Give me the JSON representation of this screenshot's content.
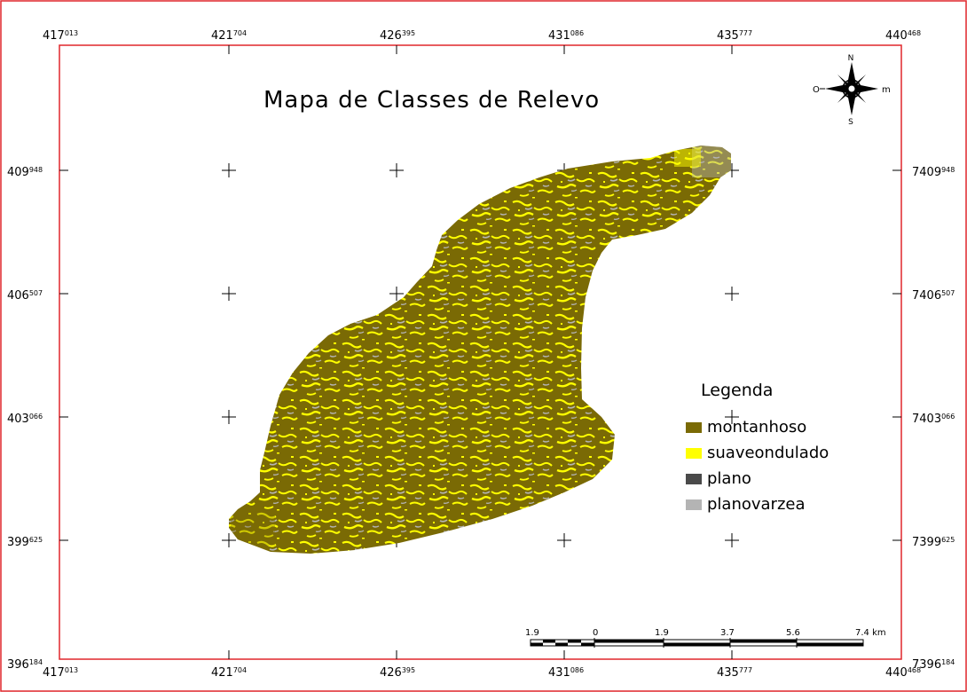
{
  "map": {
    "title": "Mapa de Classes de Relevo",
    "x_ticks": [
      {
        "main": "417",
        "sup": "013"
      },
      {
        "main": "421",
        "sup": "704"
      },
      {
        "main": "426",
        "sup": "395"
      },
      {
        "main": "431",
        "sup": "086"
      },
      {
        "main": "435",
        "sup": "777"
      },
      {
        "main": "440",
        "sup": "468"
      }
    ],
    "y_ticks_left": [
      {
        "main": "409",
        "sup": "948"
      },
      {
        "main": "406",
        "sup": "507"
      },
      {
        "main": "403",
        "sup": "066"
      },
      {
        "main": "399",
        "sup": "625"
      },
      {
        "main": "396",
        "sup": "184"
      }
    ],
    "y_ticks_right": [
      {
        "main": "7409",
        "sup": "948"
      },
      {
        "main": "7406",
        "sup": "507"
      },
      {
        "main": "7403",
        "sup": "066"
      },
      {
        "main": "7399",
        "sup": "625"
      },
      {
        "main": "7396",
        "sup": "184"
      }
    ],
    "north_arrow": {
      "icon": "compass-rose-icon",
      "n": "N",
      "s": "S",
      "e": "m",
      "w": "O"
    },
    "legend": {
      "title": "Legenda",
      "items": [
        {
          "label": "montanhoso",
          "color": "#7a6a05"
        },
        {
          "label": "suaveondulado",
          "color": "#ffff00"
        },
        {
          "label": "plano",
          "color": "#4a4a4a"
        },
        {
          "label": "planovarzea",
          "color": "#b4b4b4"
        }
      ]
    },
    "scale_bar": {
      "labels": [
        "1.9",
        "0",
        "1.9",
        "3.7",
        "5.6",
        "7.4 km"
      ]
    },
    "colors": {
      "frame": "#e0262b",
      "montanhoso": "#7a6a05",
      "suaveondulado": "#ffff00",
      "planovarzea": "#b4b4b4"
    }
  }
}
